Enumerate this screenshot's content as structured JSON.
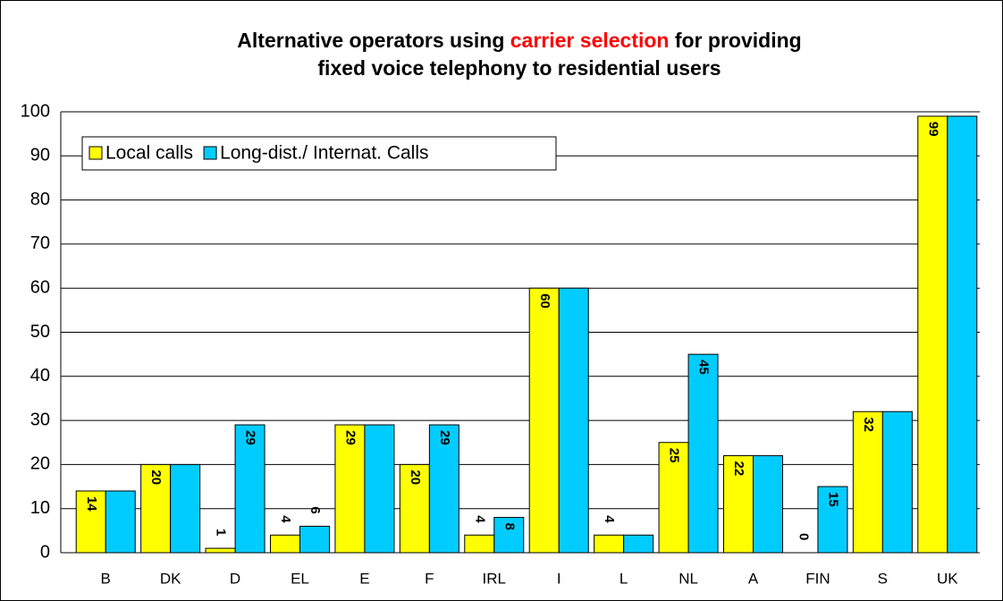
{
  "chart_data": {
    "type": "bar",
    "title": [
      [
        {
          "text": "Alternative operators using ",
          "color": "#000000"
        },
        {
          "text": "carrier selection",
          "color": "#ff0000"
        },
        {
          "text": " for providing",
          "color": "#000000"
        }
      ],
      [
        {
          "text": "fixed voice telephony to residential users",
          "color": "#000000"
        }
      ]
    ],
    "categories": [
      "B",
      "DK",
      "D",
      "EL",
      "E",
      "F",
      "IRL",
      "I",
      "L",
      "NL",
      "A",
      "FIN",
      "S",
      "UK"
    ],
    "series": [
      {
        "name": "Local calls",
        "color": "#ffff00",
        "values": [
          14,
          20,
          1,
          4,
          29,
          20,
          4,
          60,
          4,
          25,
          22,
          0,
          32,
          99
        ],
        "value_labels": [
          "14",
          "20",
          "1",
          "4",
          "29",
          "20",
          "4",
          "60",
          "4",
          "25",
          "22",
          "0",
          "32",
          "99"
        ]
      },
      {
        "name": "Long-dist./ Internat. Calls",
        "color": "#00ccff",
        "values": [
          14,
          20,
          29,
          6,
          29,
          29,
          8,
          60,
          4,
          45,
          22,
          15,
          32,
          99
        ],
        "value_labels": [
          null,
          null,
          "29",
          "6",
          null,
          "29",
          "8",
          null,
          null,
          "45",
          null,
          "15",
          null,
          null
        ]
      }
    ],
    "ylim": [
      0,
      100
    ],
    "yticks": [
      0,
      10,
      20,
      30,
      40,
      50,
      60,
      70,
      80,
      90,
      100
    ],
    "grid": true,
    "legend": "top-left"
  }
}
